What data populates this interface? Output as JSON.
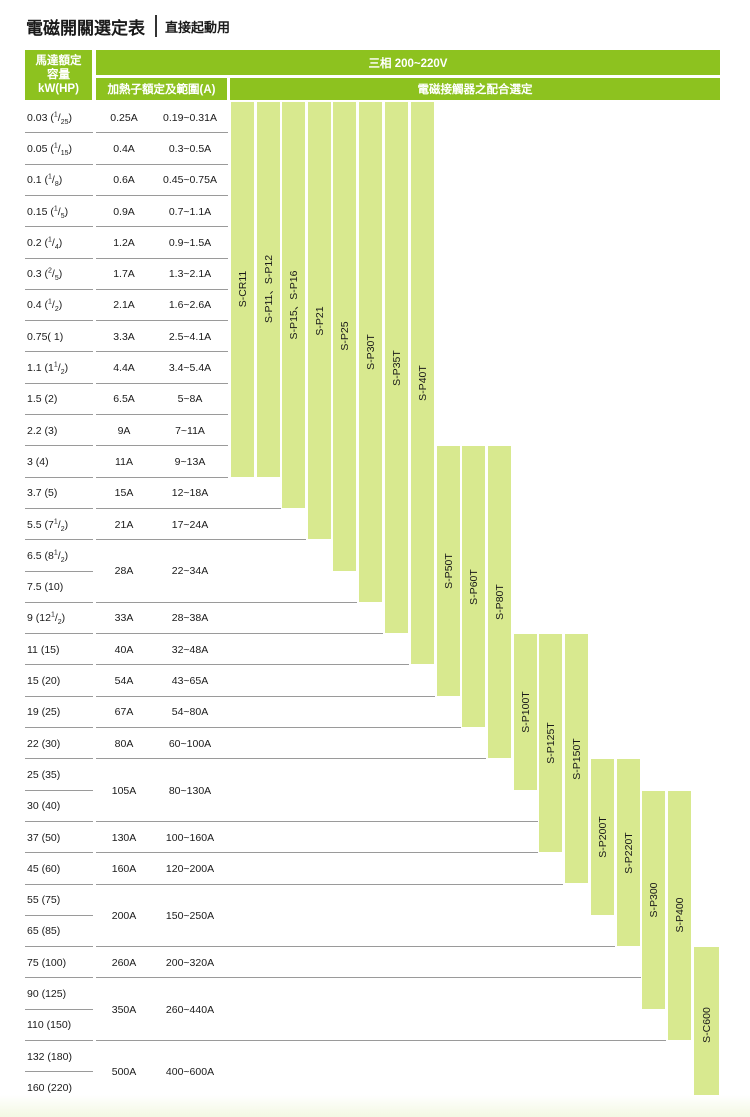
{
  "title": {
    "main": "電磁開關選定表",
    "sub": "直接起動用"
  },
  "header": {
    "motor_line1": "馬達額定",
    "motor_line2": "容量",
    "motor_line3": "kW(HP)",
    "phase": "三相 200~220V",
    "heater": "加熱子額定及範圍(A)",
    "contactor": "電磁接觸器之配合選定"
  },
  "motors": [
    {
      "kw": "0.03 (",
      "hp": "1",
      "den": "25"
    },
    {
      "kw": "0.05 (",
      "hp": "1",
      "den": "15"
    },
    {
      "kw": "0.1 (",
      "hp": "1",
      "den": "8"
    },
    {
      "kw": "0.15 (",
      "hp": "1",
      "den": "5"
    },
    {
      "kw": "0.2 (",
      "hp": "1",
      "den": "4"
    },
    {
      "kw": "0.3 (",
      "hp": "2",
      "den": "5"
    },
    {
      "kw": "0.4 (",
      "hp": "1",
      "den": "2"
    },
    {
      "kw": "0.75( 1)"
    },
    {
      "kw": "1.1 (1",
      "hp": "1",
      "den": "2"
    },
    {
      "kw": "1.5 (2)"
    },
    {
      "kw": "2.2 (3)"
    },
    {
      "kw": "3 (4)"
    },
    {
      "kw": "3.7 (5)"
    },
    {
      "kw": "5.5 (7",
      "hp": "1",
      "den": "2"
    },
    {
      "kw": "6.5 (8",
      "hp": "1",
      "den": "2"
    },
    {
      "kw": "7.5 (10)"
    },
    {
      "kw": "9 (12",
      "hp": "1",
      "den": "2"
    },
    {
      "kw": "11 (15)"
    },
    {
      "kw": "15 (20)"
    },
    {
      "kw": "19 (25)"
    },
    {
      "kw": "22 (30)"
    },
    {
      "kw": "25 (35)"
    },
    {
      "kw": "30 (40)"
    },
    {
      "kw": "37 (50)"
    },
    {
      "kw": "45 (60)"
    },
    {
      "kw": "55 (75)"
    },
    {
      "kw": "65 (85)"
    },
    {
      "kw": "75 (100)"
    },
    {
      "kw": "90 (125)"
    },
    {
      "kw": "110 (150)"
    },
    {
      "kw": "132 (180)"
    },
    {
      "kw": "160 (220)"
    }
  ],
  "heaters": [
    {
      "current": "0.25A",
      "range": "0.19~0.31A"
    },
    {
      "current": "0.4A",
      "range": "0.3~0.5A"
    },
    {
      "current": "0.6A",
      "range": "0.45~0.75A"
    },
    {
      "current": "0.9A",
      "range": "0.7~1.1A"
    },
    {
      "current": "1.2A",
      "range": "0.9~1.5A"
    },
    {
      "current": "1.7A",
      "range": "1.3~2.1A"
    },
    {
      "current": "2.1A",
      "range": "1.6~2.6A"
    },
    {
      "current": "3.3A",
      "range": "2.5~4.1A"
    },
    {
      "current": "4.4A",
      "range": "3.4~5.4A"
    },
    {
      "current": "6.5A",
      "range": "5~8A"
    },
    {
      "current": "9A",
      "range": "7~11A"
    },
    {
      "current": "11A",
      "range": "9~13A"
    },
    {
      "current": "15A",
      "range": "12~18A"
    },
    {
      "current": "21A",
      "range": "17~24A"
    },
    {
      "current": "28A",
      "range": "22~34A"
    },
    {
      "current": "33A",
      "range": "28~38A"
    },
    {
      "current": "40A",
      "range": "32~48A"
    },
    {
      "current": "54A",
      "range": "43~65A"
    },
    {
      "current": "67A",
      "range": "54~80A"
    },
    {
      "current": "80A",
      "range": "60~100A"
    },
    {
      "current": "105A",
      "range": "80~130A"
    },
    {
      "current": "130A",
      "range": "100~160A"
    },
    {
      "current": "160A",
      "range": "120~200A"
    },
    {
      "current": "200A",
      "range": "150~250A"
    },
    {
      "current": "260A",
      "range": "200~320A"
    },
    {
      "current": "350A",
      "range": "260~440A"
    },
    {
      "current": "500A",
      "range": "400~600A"
    }
  ],
  "contactors": [
    {
      "label": "S-CR11"
    },
    {
      "label": "S-P11、S-P12"
    },
    {
      "label": "S-P15、S-P16"
    },
    {
      "label": "S-P21"
    },
    {
      "label": "S-P25"
    },
    {
      "label": "S-P30T"
    },
    {
      "label": "S-P35T"
    },
    {
      "label": "S-P40T"
    },
    {
      "label": "S-P50T"
    },
    {
      "label": "S-P60T"
    },
    {
      "label": "S-P80T"
    },
    {
      "label": "S-P100T"
    },
    {
      "label": "S-P125T"
    },
    {
      "label": "S-P150T"
    },
    {
      "label": "S-P200T"
    },
    {
      "label": "S-P220T"
    },
    {
      "label": "S-P300"
    },
    {
      "label": "S-P400"
    },
    {
      "label": "S-C600"
    }
  ]
}
